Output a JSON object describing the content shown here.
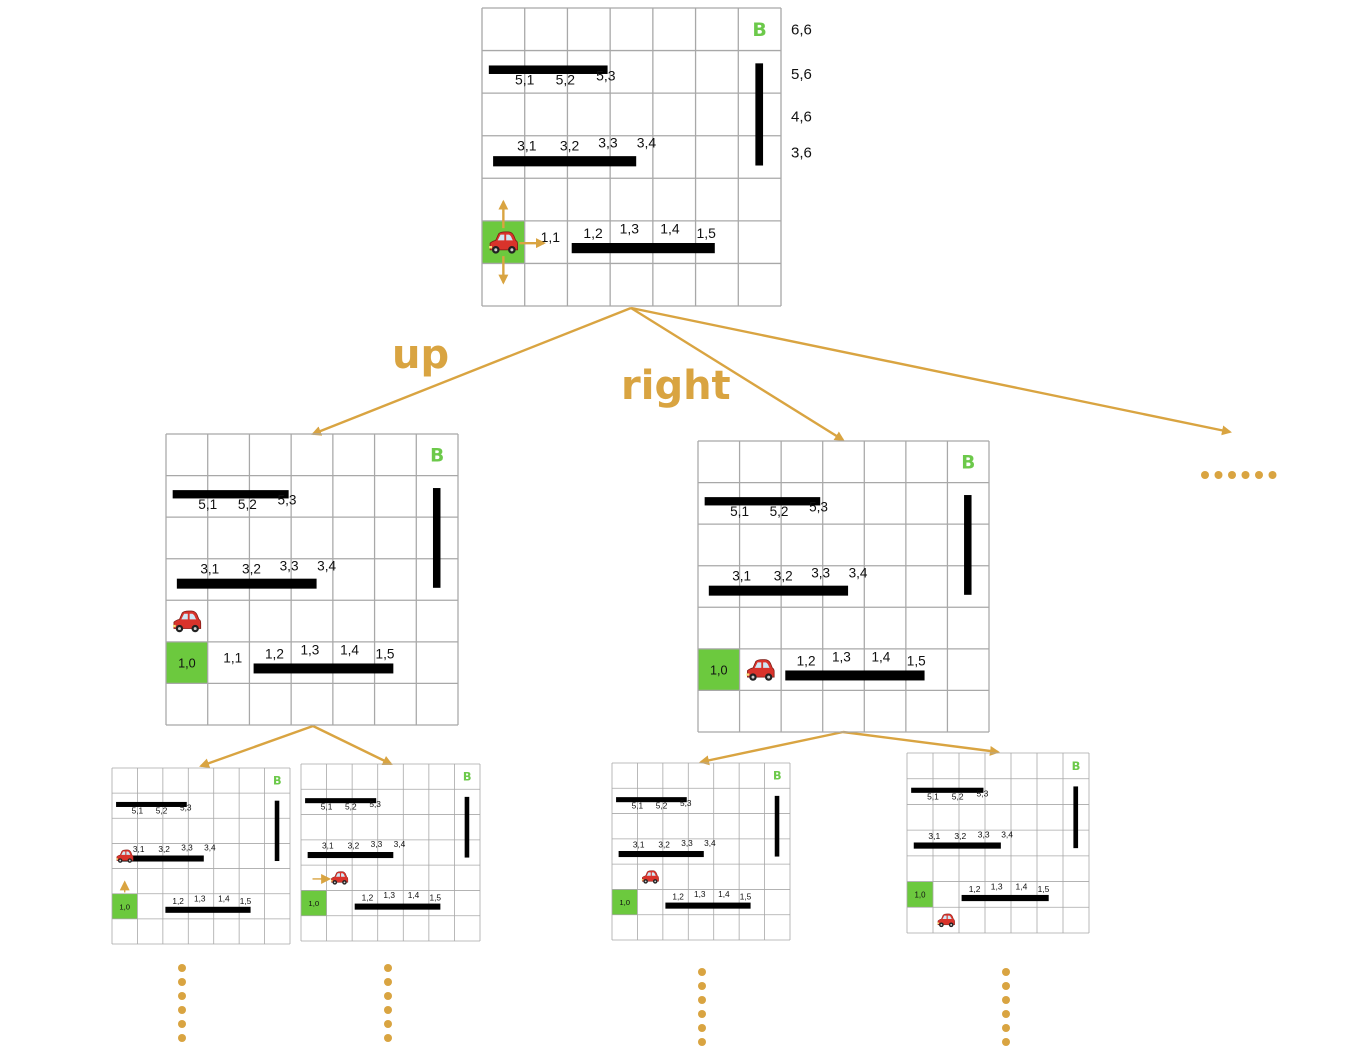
{
  "colors": {
    "accent": "#d9a441",
    "goal_green": "#6cc94a",
    "start_green": "#6cc93e",
    "wall": "#000000",
    "grid_line": "#a8a8a8",
    "car": "#d9332b"
  },
  "icons": {
    "car": "car-icon",
    "move_arrows": "arrow-icon"
  },
  "edge_labels": {
    "up": "up",
    "right": "right"
  },
  "ellipsis": "......",
  "grid": {
    "rows": 7,
    "cols": 7,
    "goal_label": "B",
    "start_label": "1,0",
    "row_labels": [
      "6,6",
      "5,6",
      "4,6",
      "3,6"
    ],
    "labels_row5": [
      "5,1",
      "5,2",
      "5,3"
    ],
    "labels_row3": [
      "3,1",
      "3,2",
      "3,3",
      "3,4"
    ],
    "labels_row1": [
      "1,1",
      "1,2",
      "1,3",
      "1,4",
      "1,5"
    ]
  }
}
